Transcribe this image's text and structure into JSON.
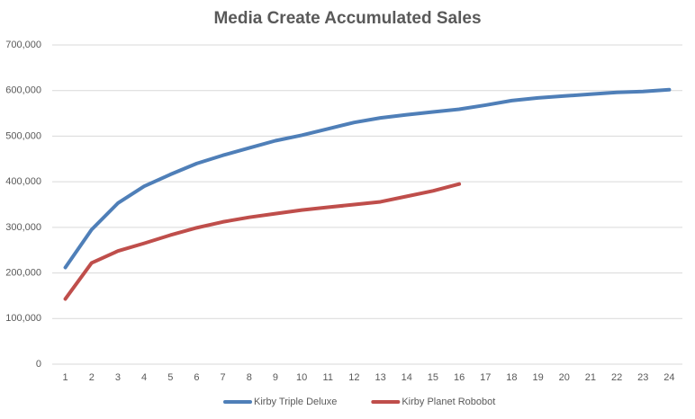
{
  "chart_data": {
    "type": "line",
    "title": "Media Create Accumulated Sales",
    "categories": [
      "1",
      "2",
      "3",
      "4",
      "5",
      "6",
      "7",
      "8",
      "9",
      "10",
      "11",
      "12",
      "13",
      "14",
      "15",
      "16",
      "17",
      "18",
      "19",
      "20",
      "21",
      "22",
      "23",
      "24"
    ],
    "series": [
      {
        "name": "Kirby Triple Deluxe",
        "color": "#4f7fb8",
        "values": [
          212000,
          295000,
          353000,
          390000,
          416000,
          440000,
          458000,
          474000,
          490000,
          502000,
          516000,
          530000,
          540000,
          547000,
          553000,
          559000,
          568000,
          578000,
          584000,
          588000,
          592000,
          596000,
          598000,
          602000
        ]
      },
      {
        "name": "Kirby Planet Robobot",
        "color": "#bf4e4b",
        "values": [
          143000,
          222000,
          248000,
          265000,
          283000,
          299000,
          312000,
          322000,
          330000,
          338000,
          344000,
          350000,
          356000,
          368000,
          380000,
          395000,
          null,
          null,
          null,
          null,
          null,
          null,
          null,
          null
        ]
      }
    ],
    "ylim": [
      0,
      700000
    ],
    "yticks": [
      0,
      {
        "value": 100000,
        "label": "100,000"
      },
      {
        "value": 200000,
        "label": "200,000"
      },
      {
        "value": 300000,
        "label": "300,000"
      },
      {
        "value": 400000,
        "label": "400,000"
      },
      {
        "value": 500000,
        "label": "500,000"
      },
      {
        "value": 600000,
        "label": "600,000"
      },
      {
        "value": 700000,
        "label": "700,000"
      }
    ],
    "grid": true,
    "legend": "bottom"
  }
}
